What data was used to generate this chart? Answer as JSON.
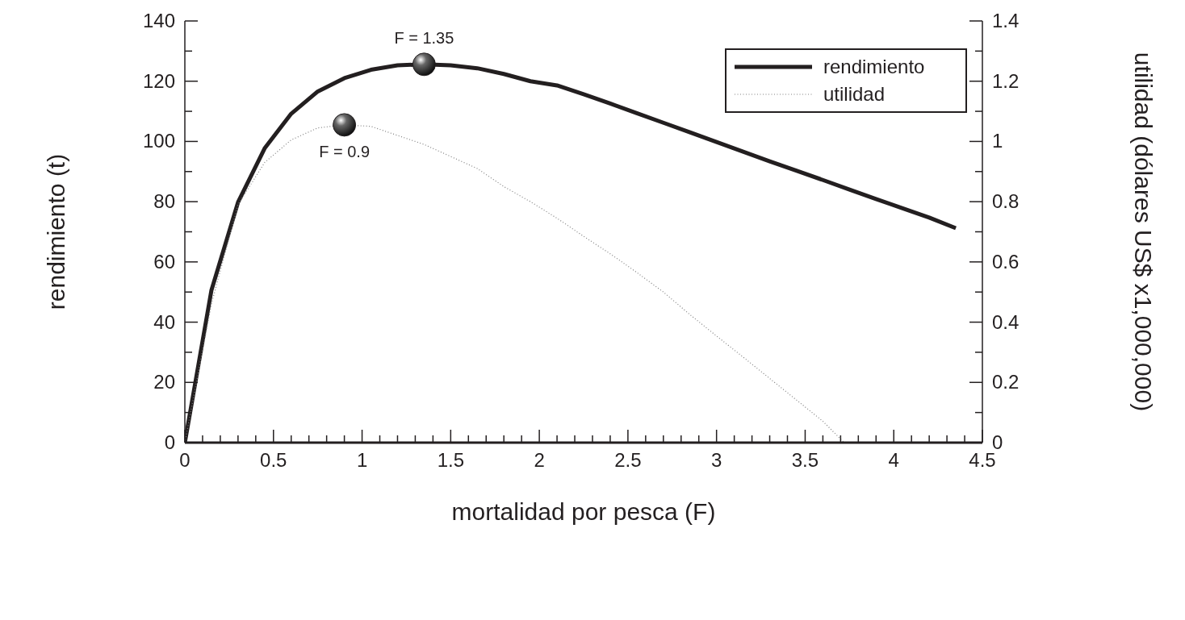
{
  "chart_data": {
    "type": "line",
    "xlabel": "mortalidad por pesca (F)",
    "ylabel": "rendimiento (t)",
    "y2label": "utilidad (dólares US$ x1,000,000)",
    "series": [
      {
        "name": "rendimiento",
        "color": "#231f20",
        "line_style": "solid",
        "axis": "y",
        "x": [
          0,
          0.15,
          0.3,
          0.45,
          0.6,
          0.75,
          0.9,
          1.05,
          1.2,
          1.35,
          1.5,
          1.65,
          1.8,
          1.95,
          2.1,
          2.25,
          2.4,
          2.55,
          2.7,
          2.85,
          3.0,
          3.15,
          3.3,
          3.45,
          3.6,
          3.75,
          3.9,
          4.05,
          4.2,
          4.35
        ],
        "values": [
          0,
          50.6,
          79.8,
          97.7,
          109.2,
          116.6,
          121,
          123.8,
          125.3,
          125.6,
          125.3,
          124.3,
          122.4,
          120,
          118.6,
          115.7,
          112.6,
          109.4,
          106.2,
          103,
          99.8,
          96.6,
          93.4,
          90.3,
          87.2,
          84,
          80.9,
          77.8,
          74.7,
          71.2
        ]
      },
      {
        "name": "utilidad",
        "color": "#808080",
        "line_style": "dotted",
        "axis": "y2",
        "x": [
          0,
          0.15,
          0.3,
          0.45,
          0.6,
          0.75,
          0.9,
          1.05,
          1.2,
          1.35,
          1.5,
          1.65,
          1.8,
          1.95,
          2.1,
          2.25,
          2.4,
          2.55,
          2.7,
          2.85,
          3.0,
          3.15,
          3.3,
          3.45,
          3.6,
          3.72
        ],
        "values": [
          0,
          0.46,
          0.79,
          0.93,
          1.005,
          1.045,
          1.055,
          1.05,
          1.02,
          0.99,
          0.95,
          0.91,
          0.85,
          0.8,
          0.745,
          0.685,
          0.627,
          0.565,
          0.5,
          0.425,
          0.354,
          0.284,
          0.213,
          0.142,
          0.071,
          0
        ]
      },
      {
        "type": "scatter",
        "color": "#231f20",
        "marker": "circle",
        "axis": "y",
        "x": [
          0.9,
          1.35
        ],
        "values": [
          105.5,
          125.6
        ]
      }
    ],
    "annotations": [
      {
        "text": "F = 1.35",
        "x": 1.35,
        "y": 125.6
      },
      {
        "text": "F = 0.9",
        "x": 0.9,
        "y": 105.5
      }
    ],
    "xlim": [
      0,
      4.5
    ],
    "xticks": [
      0,
      {
        "value": 0.1,
        "label": null
      },
      {
        "value": 0.2,
        "label": null
      },
      {
        "value": 0.3,
        "label": null
      },
      {
        "value": 0.4,
        "label": null
      },
      0.5,
      {
        "value": 0.6,
        "label": null
      },
      {
        "value": 0.7,
        "label": null
      },
      {
        "value": 0.8,
        "label": null
      },
      {
        "value": 0.9,
        "label": null
      },
      1,
      {
        "value": 1.1,
        "label": null
      },
      {
        "value": 1.2,
        "label": null
      },
      {
        "value": 1.3,
        "label": null
      },
      {
        "value": 1.4,
        "label": null
      },
      1.5,
      {
        "value": 1.6,
        "label": null
      },
      {
        "value": 1.7,
        "label": null
      },
      {
        "value": 1.8,
        "label": null
      },
      {
        "value": 1.9,
        "label": null
      },
      2,
      {
        "value": 2.1,
        "label": null
      },
      {
        "value": 2.2,
        "label": null
      },
      {
        "value": 2.3,
        "label": null
      },
      {
        "value": 2.4,
        "label": null
      },
      2.5,
      {
        "value": 2.6,
        "label": null
      },
      {
        "value": 2.7,
        "label": null
      },
      {
        "value": 2.8,
        "label": null
      },
      {
        "value": 2.9,
        "label": null
      },
      3,
      {
        "value": 3.1,
        "label": null
      },
      {
        "value": 3.2,
        "label": null
      },
      {
        "value": 3.3,
        "label": null
      },
      {
        "value": 3.4,
        "label": null
      },
      3.5,
      {
        "value": 3.6,
        "label": null
      },
      {
        "value": 3.7,
        "label": null
      },
      {
        "value": 3.8,
        "label": null
      },
      {
        "value": 3.9,
        "label": null
      },
      4,
      {
        "value": 4.1,
        "label": null
      },
      {
        "value": 4.2,
        "label": null
      },
      {
        "value": 4.3,
        "label": null
      },
      {
        "value": 4.4,
        "label": null
      },
      4.5
    ],
    "ylim": [
      0,
      140
    ],
    "yticks": [
      0,
      {
        "value": 10,
        "label": null
      },
      20,
      {
        "value": 30,
        "label": null
      },
      40,
      {
        "value": 50,
        "label": null
      },
      60,
      {
        "value": 70,
        "label": null
      },
      80,
      {
        "value": 90,
        "label": null
      },
      100,
      {
        "value": 110,
        "label": null
      },
      120,
      {
        "value": 130,
        "label": null
      },
      140
    ],
    "y2lim": [
      0,
      1.4
    ],
    "y2ticks": [
      0,
      {
        "value": 0.1,
        "label": null
      },
      0.2,
      {
        "value": 0.3,
        "label": null
      },
      0.4,
      {
        "value": 0.5,
        "label": null
      },
      0.6,
      {
        "value": 0.7,
        "label": null
      },
      0.8,
      {
        "value": 0.9,
        "label": null
      },
      1,
      {
        "value": 1.1,
        "label": null
      },
      1.2,
      {
        "value": 1.3,
        "label": null
      },
      1.4
    ],
    "grid": false,
    "legend": "top right"
  }
}
